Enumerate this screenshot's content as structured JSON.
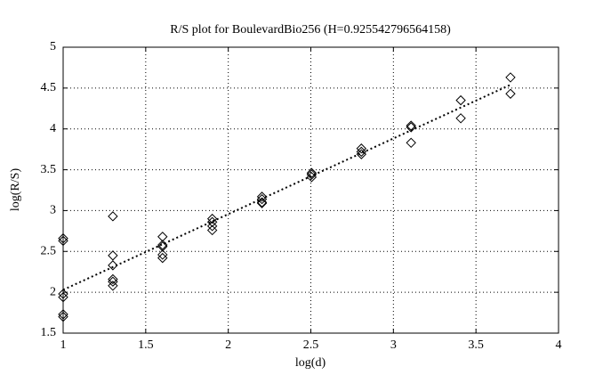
{
  "chart_data": {
    "type": "scatter",
    "title": "R/S plot for BoulevardBio256 (H=0.925542796564158)",
    "x_label": "log(d)",
    "y_label": "log(R/S)",
    "xlim": [
      1,
      4
    ],
    "xticks": [
      1,
      1.5,
      2,
      2.5,
      3,
      3.5,
      4
    ],
    "ylim": [
      1.5,
      5
    ],
    "yticks": [
      1.5,
      2,
      2.5,
      3,
      3.5,
      4,
      4.5,
      5
    ],
    "grid": true,
    "series": [
      {
        "type": "scatter",
        "marker": "diamond",
        "color": "#000000",
        "x": [
          1,
          1,
          1,
          1,
          1,
          1,
          1.301,
          1.301,
          1.301,
          1.301,
          1.301,
          1.301,
          1.602,
          1.602,
          1.602,
          1.602,
          1.602,
          1.903,
          1.903,
          1.903,
          1.903,
          2.204,
          2.204,
          2.204,
          2.204,
          2.505,
          2.505,
          2.505,
          2.806,
          2.806,
          2.806,
          3.107,
          3.107,
          3.107,
          3.408,
          3.408,
          3.709,
          3.709
        ],
        "values": [
          2.66,
          2.63,
          1.98,
          1.94,
          1.73,
          1.7,
          2.93,
          2.45,
          2.33,
          2.16,
          2.13,
          2.08,
          2.68,
          2.58,
          2.56,
          2.46,
          2.42,
          2.9,
          2.86,
          2.81,
          2.76,
          3.17,
          3.14,
          3.1,
          3.09,
          3.46,
          3.44,
          3.41,
          3.76,
          3.72,
          3.69,
          4.04,
          4.02,
          3.83,
          4.35,
          4.13,
          4.63,
          4.43
        ]
      },
      {
        "type": "line",
        "style": "dotted",
        "color": "#000000",
        "x": [
          1,
          3.709
        ],
        "values": [
          2.03,
          4.54
        ]
      }
    ]
  }
}
